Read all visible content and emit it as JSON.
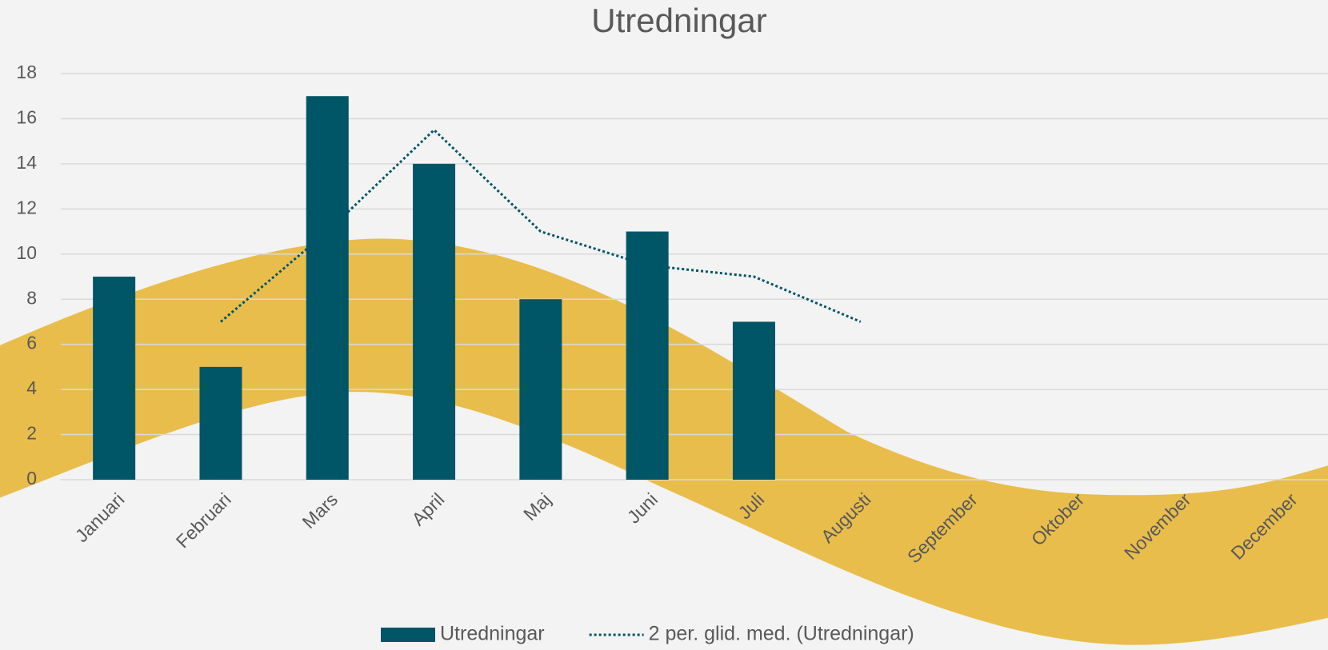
{
  "chart_data": {
    "type": "bar",
    "title": "Utredningar",
    "categories": [
      "Januari",
      "Februari",
      "Mars",
      "April",
      "Maj",
      "Juni",
      "Juli",
      "Augusti",
      "September",
      "Oktober",
      "November",
      "December"
    ],
    "series": [
      {
        "name": "Utredningar",
        "type": "bar",
        "color": "#005566",
        "values": [
          9,
          5,
          17,
          14,
          8,
          11,
          7,
          null,
          null,
          null,
          null,
          null
        ]
      },
      {
        "name": "2 per. glid. med. (Utredningar)",
        "type": "line",
        "style": "dotted",
        "color": "#005566",
        "values": [
          null,
          7,
          11,
          15.5,
          11,
          9.5,
          9,
          7,
          null,
          null,
          null,
          null
        ]
      }
    ],
    "ylim": [
      0,
      18
    ],
    "yticks": [
      0,
      2,
      4,
      6,
      8,
      10,
      12,
      14,
      16,
      18
    ],
    "grid": true,
    "legend": "bottom"
  }
}
